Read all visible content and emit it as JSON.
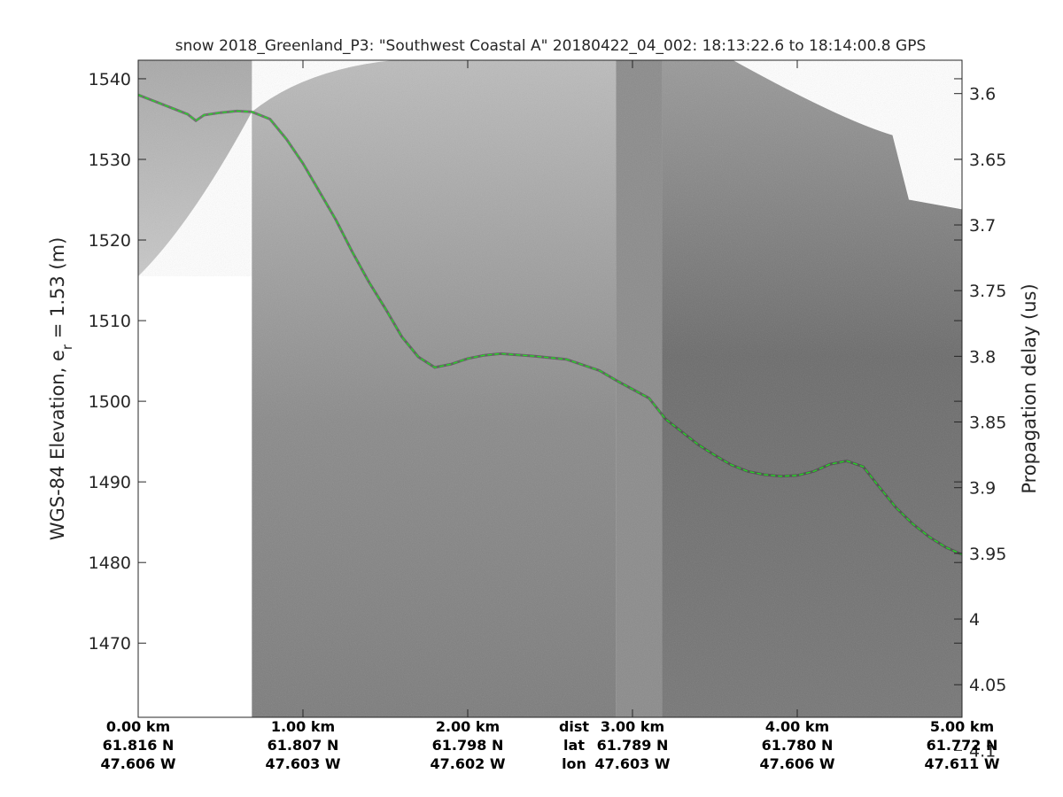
{
  "title": "snow 2018_Greenland_P3: \"Southwest Coastal A\"  20180422_04_002: 18:13:22.6 to 18:14:00.8 GPS",
  "chart_data": {
    "type": "heatmap",
    "description_note": "",
    "ylabel_left": "WGS-84 Elevation, e",
    "ylabel_left_sub": "r",
    "ylabel_left_tail": " = 1.53 (m)",
    "ylabel_right": "Propagation delay (us)",
    "ylim": [
      1460.8,
      1542.3
    ],
    "x_range_km": [
      0.0,
      5.0
    ],
    "y_ticks": [
      1540,
      1530,
      1520,
      1510,
      1500,
      1490,
      1480,
      1470
    ],
    "y_ticks_right": [
      {
        "value": 3.6,
        "label": "3.6"
      },
      {
        "value": 3.65,
        "label": "3.65"
      },
      {
        "value": 3.7,
        "label": "3.7"
      },
      {
        "value": 3.75,
        "label": "3.75"
      },
      {
        "value": 3.8,
        "label": "3.8"
      },
      {
        "value": 3.85,
        "label": "3.85"
      },
      {
        "value": 3.9,
        "label": "3.9"
      },
      {
        "value": 3.95,
        "label": "3.95"
      },
      {
        "value": 4.0,
        "label": "4"
      },
      {
        "value": 4.05,
        "label": "4.05"
      },
      {
        "value": 4.1,
        "label": "4.1"
      }
    ],
    "right_axis_range": [
      3.5746,
      4.0748
    ],
    "x_ticks": [
      {
        "km": 0.0,
        "dist": "0.00 km",
        "lat": "61.816 N",
        "lon": "47.606 W"
      },
      {
        "km": 1.0,
        "dist": "1.00 km",
        "lat": "61.807 N",
        "lon": "47.603 W"
      },
      {
        "km": 2.0,
        "dist": "2.00 km",
        "lat": "61.798 N",
        "lon": "47.602 W"
      },
      {
        "km": 3.0,
        "dist": "3.00 km",
        "lat": "61.789 N",
        "lon": "47.603 W"
      },
      {
        "km": 4.0,
        "dist": "4.00 km",
        "lat": "61.780 N",
        "lon": "47.606 W"
      },
      {
        "km": 5.0,
        "dist": "5.00 km",
        "lat": "61.772 N",
        "lon": "47.611 W"
      }
    ],
    "x_row_labels": {
      "km": 2.5,
      "dist": "dist",
      "lat": "lat",
      "lon": "lon"
    },
    "surface_trace": {
      "color": "#22dd22",
      "style": "dashed",
      "x_km": [
        0.0,
        0.1,
        0.2,
        0.3,
        0.35,
        0.4,
        0.5,
        0.6,
        0.69,
        0.8,
        0.9,
        1.0,
        1.1,
        1.2,
        1.3,
        1.4,
        1.5,
        1.6,
        1.7,
        1.8,
        1.9,
        2.0,
        2.1,
        2.2,
        2.4,
        2.6,
        2.8,
        2.9,
        3.0,
        3.1,
        3.2,
        3.3,
        3.4,
        3.5,
        3.6,
        3.7,
        3.8,
        3.9,
        4.0,
        4.1,
        4.2,
        4.3,
        4.4,
        4.5,
        4.6,
        4.7,
        4.8,
        4.9,
        5.0
      ],
      "elevation_m": [
        1538,
        1537.2,
        1536.4,
        1535.6,
        1534.8,
        1535.5,
        1535.8,
        1536,
        1535.9,
        1535,
        1532.5,
        1529.5,
        1526,
        1522.5,
        1518.5,
        1514.8,
        1511.5,
        1508,
        1505.5,
        1504.2,
        1504.6,
        1505.3,
        1505.7,
        1505.9,
        1505.6,
        1505.2,
        1503.8,
        1502.6,
        1501.5,
        1500.4,
        1497.8,
        1496.2,
        1494.6,
        1493.3,
        1492.1,
        1491.3,
        1490.9,
        1490.7,
        1490.8,
        1491.3,
        1492.2,
        1492.6,
        1491.9,
        1489.3,
        1486.8,
        1484.8,
        1483.2,
        1481.9,
        1481
      ]
    },
    "image_segments": [
      {
        "x_km": [
          0.0,
          0.69
        ],
        "shade": "#b7b7b7",
        "top_edge": "full",
        "bottom_edge": [
          1515.5,
          1535.9
        ],
        "note": ""
      },
      {
        "x_km": [
          0.69,
          2.9
        ],
        "shade": "#8f8f8f",
        "top_edge": [
          1535.9,
          1542.3
        ],
        "bottom_edge": "full"
      },
      {
        "x_km": [
          2.9,
          3.18
        ],
        "shade": "#8c8c8c",
        "top_edge": "full",
        "bottom_edge": "full"
      },
      {
        "x_km": [
          3.18,
          5.0
        ],
        "shade": "#7d7d7d",
        "top_edge": [
          1542.3,
          1523.8
        ],
        "bottom_edge": "full"
      }
    ],
    "grid": false,
    "legend": "none"
  }
}
